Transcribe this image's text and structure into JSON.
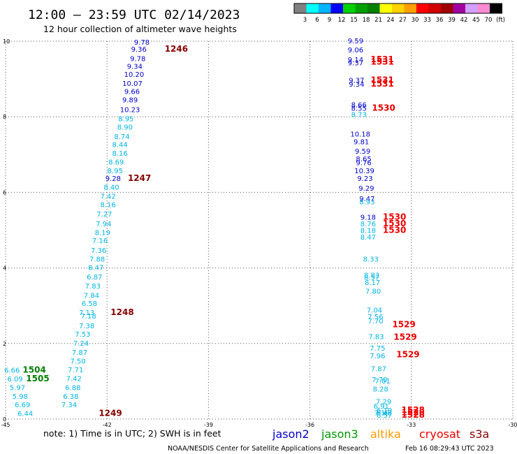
{
  "header": {
    "title": "12:00 – 23:59 UTC 02/14/2023",
    "subtitle": "12 hour collection of altimeter wave heights"
  },
  "colorbar": {
    "colors": [
      "#808080",
      "#00ffff",
      "#00b4ff",
      "#0000ff",
      "#00d200",
      "#00a000",
      "#008000",
      "#ffff00",
      "#ffd200",
      "#ffa000",
      "#ff0000",
      "#d20000",
      "#a00000",
      "#a000a0",
      "#d2a0ff",
      "#ff8cd2",
      "#000000"
    ],
    "labels": [
      "3",
      "6",
      "9",
      "12",
      "15",
      "18",
      "21",
      "24",
      "27",
      "30",
      "33",
      "36",
      "39",
      "42",
      "45",
      "70",
      "(ft)"
    ]
  },
  "footer": {
    "note": "note:  1) Time is in UTC; 2) SWH is in feet",
    "credit": "NOAA/NESDIS Center for Satellite Applications and Research",
    "timestamp": "Feb 16 08:29:43 UTC 2023",
    "satellites": [
      {
        "name": "jason2",
        "color": "#0000cc"
      },
      {
        "name": "jason3",
        "color": "#009900"
      },
      {
        "name": "altika",
        "color": "#ff9900"
      },
      {
        "name": "cryosat",
        "color": "#ee0000"
      },
      {
        "name": "s3a",
        "color": "#880000"
      }
    ]
  },
  "chart_data": {
    "type": "scatter",
    "title": "12:00 – 23:59 UTC 02/14/2023",
    "xlim": [
      -45,
      -30
    ],
    "ylim": [
      0,
      10
    ],
    "x_ticks": [
      "-45",
      "-42",
      "-39",
      "-36",
      "-33",
      "-30"
    ],
    "y_ticks": [
      "0",
      "2",
      "4",
      "6",
      "8",
      "10"
    ],
    "grid": true,
    "units": "SWH in feet",
    "colors": {
      "cyan": "#00b4e6",
      "blue": "#0000cc",
      "green": "#008000",
      "red": "#ee0000",
      "darkred": "#880000"
    },
    "observations": [
      {
        "x": -40.97,
        "y": 9.91,
        "v": "9.78",
        "c": "blue"
      },
      {
        "x": -41.06,
        "y": 9.72,
        "v": "9.36",
        "c": "blue"
      },
      {
        "x": -41.09,
        "y": 9.47,
        "v": "9.78",
        "c": "blue"
      },
      {
        "x": -41.18,
        "y": 9.27,
        "v": "9.34",
        "c": "blue"
      },
      {
        "x": -41.2,
        "y": 9.06,
        "v": "10.20",
        "c": "blue"
      },
      {
        "x": -41.25,
        "y": 8.82,
        "v": "10.07",
        "c": "blue"
      },
      {
        "x": -41.26,
        "y": 8.6,
        "v": "9.66",
        "c": "blue"
      },
      {
        "x": -41.32,
        "y": 8.38,
        "v": "9.89",
        "c": "blue"
      },
      {
        "x": -41.32,
        "y": 8.12,
        "v": "10.23",
        "c": "blue"
      },
      {
        "x": -41.44,
        "y": 7.88,
        "v": "8.95",
        "c": "cyan"
      },
      {
        "x": -41.47,
        "y": 7.66,
        "v": "8.90",
        "c": "cyan"
      },
      {
        "x": -41.56,
        "y": 7.41,
        "v": "8.74",
        "c": "cyan"
      },
      {
        "x": -41.62,
        "y": 7.2,
        "v": "8.44",
        "c": "cyan"
      },
      {
        "x": -41.62,
        "y": 6.97,
        "v": "8.16",
        "c": "cyan"
      },
      {
        "x": -41.73,
        "y": 6.74,
        "v": "8.69",
        "c": "cyan"
      },
      {
        "x": -41.76,
        "y": 6.51,
        "v": "8.95",
        "c": "cyan"
      },
      {
        "x": -41.82,
        "y": 6.3,
        "v": "9.28",
        "c": "blue"
      },
      {
        "x": -41.87,
        "y": 6.07,
        "v": "8.40",
        "c": "cyan"
      },
      {
        "x": -41.97,
        "y": 5.83,
        "v": "7.42",
        "c": "cyan"
      },
      {
        "x": -41.97,
        "y": 5.61,
        "v": "8.16",
        "c": "cyan"
      },
      {
        "x": -42.08,
        "y": 5.36,
        "v": "7.27",
        "c": "cyan"
      },
      {
        "x": -42.1,
        "y": 5.1,
        "v": "7.94",
        "c": "cyan"
      },
      {
        "x": -42.13,
        "y": 4.87,
        "v": "8.19",
        "c": "cyan"
      },
      {
        "x": -42.21,
        "y": 4.66,
        "v": "7.16",
        "c": "cyan"
      },
      {
        "x": -42.25,
        "y": 4.4,
        "v": "7.36",
        "c": "cyan"
      },
      {
        "x": -42.29,
        "y": 4.17,
        "v": "7.88",
        "c": "cyan"
      },
      {
        "x": -42.33,
        "y": 3.95,
        "v": "8.47",
        "c": "cyan"
      },
      {
        "x": -42.37,
        "y": 3.7,
        "v": "6.87",
        "c": "cyan"
      },
      {
        "x": -42.42,
        "y": 3.46,
        "v": "7.83",
        "c": "cyan"
      },
      {
        "x": -42.46,
        "y": 3.21,
        "v": "7.84",
        "c": "cyan"
      },
      {
        "x": -42.52,
        "y": 2.99,
        "v": "6.58",
        "c": "cyan"
      },
      {
        "x": -42.6,
        "y": 2.75,
        "v": "7.13",
        "c": "cyan"
      },
      {
        "x": -42.55,
        "y": 2.66,
        "v": "7.18",
        "c": "cyan"
      },
      {
        "x": -42.6,
        "y": 2.4,
        "v": "7.38",
        "c": "cyan"
      },
      {
        "x": -42.72,
        "y": 2.18,
        "v": "7.53",
        "c": "cyan"
      },
      {
        "x": -42.77,
        "y": 1.94,
        "v": "7.24",
        "c": "cyan"
      },
      {
        "x": -42.81,
        "y": 1.7,
        "v": "7.87",
        "c": "cyan"
      },
      {
        "x": -42.86,
        "y": 1.47,
        "v": "7.50",
        "c": "cyan"
      },
      {
        "x": -42.93,
        "y": 1.24,
        "v": "7.71",
        "c": "cyan"
      },
      {
        "x": -42.98,
        "y": 1.01,
        "v": "7.42",
        "c": "cyan"
      },
      {
        "x": -43.01,
        "y": 0.77,
        "v": "6.88",
        "c": "cyan"
      },
      {
        "x": -43.07,
        "y": 0.54,
        "v": "6.38",
        "c": "cyan"
      },
      {
        "x": -43.12,
        "y": 0.31,
        "v": "7.34",
        "c": "cyan"
      },
      {
        "x": -44.81,
        "y": 1.23,
        "v": "6.66",
        "c": "cyan"
      },
      {
        "x": -44.72,
        "y": 1.0,
        "v": "6.09",
        "c": "cyan"
      },
      {
        "x": -44.65,
        "y": 0.77,
        "v": "5.97",
        "c": "cyan"
      },
      {
        "x": -44.57,
        "y": 0.54,
        "v": "5.98",
        "c": "cyan"
      },
      {
        "x": -44.5,
        "y": 0.31,
        "v": "6.69",
        "c": "cyan"
      },
      {
        "x": -44.42,
        "y": 0.08,
        "v": "6.44",
        "c": "cyan"
      },
      {
        "x": -34.65,
        "y": 9.94,
        "v": "9.59",
        "c": "blue"
      },
      {
        "x": -34.65,
        "y": 9.7,
        "v": "9.06",
        "c": "blue"
      },
      {
        "x": -34.65,
        "y": 9.45,
        "v": "9.14",
        "c": "blue"
      },
      {
        "x": -34.65,
        "y": 9.36,
        "v": "9.37",
        "c": "blue"
      },
      {
        "x": -34.62,
        "y": 8.9,
        "v": "9.37",
        "c": "blue"
      },
      {
        "x": -34.62,
        "y": 8.8,
        "v": "9.34",
        "c": "blue"
      },
      {
        "x": -34.55,
        "y": 8.25,
        "v": "8.66",
        "c": "blue"
      },
      {
        "x": -34.55,
        "y": 8.16,
        "v": "8.55",
        "c": "blue"
      },
      {
        "x": -34.55,
        "y": 7.99,
        "v": "8.73",
        "c": "cyan"
      },
      {
        "x": -34.51,
        "y": 7.48,
        "v": "10.18",
        "c": "blue"
      },
      {
        "x": -34.48,
        "y": 7.27,
        "v": "9.81",
        "c": "blue"
      },
      {
        "x": -34.44,
        "y": 7.02,
        "v": "9.59",
        "c": "blue"
      },
      {
        "x": -34.41,
        "y": 6.82,
        "v": "8.65",
        "c": "blue"
      },
      {
        "x": -34.41,
        "y": 6.72,
        "v": "9.76",
        "c": "blue"
      },
      {
        "x": -34.39,
        "y": 6.51,
        "v": "10.39",
        "c": "blue"
      },
      {
        "x": -34.37,
        "y": 6.3,
        "v": "9.23",
        "c": "blue"
      },
      {
        "x": -34.33,
        "y": 6.04,
        "v": "9.29",
        "c": "blue"
      },
      {
        "x": -34.31,
        "y": 5.77,
        "v": "9.47",
        "c": "blue"
      },
      {
        "x": -34.31,
        "y": 5.68,
        "v": "8.93",
        "c": "cyan"
      },
      {
        "x": -34.28,
        "y": 5.28,
        "v": "9.18",
        "c": "blue"
      },
      {
        "x": -34.28,
        "y": 5.1,
        "v": "8.76",
        "c": "cyan"
      },
      {
        "x": -34.28,
        "y": 4.93,
        "v": "8.18",
        "c": "cyan"
      },
      {
        "x": -34.28,
        "y": 4.75,
        "v": "8.47",
        "c": "cyan"
      },
      {
        "x": -34.2,
        "y": 4.17,
        "v": "8.33",
        "c": "cyan"
      },
      {
        "x": -34.17,
        "y": 3.74,
        "v": "8.83",
        "c": "cyan"
      },
      {
        "x": -34.17,
        "y": 3.69,
        "v": "8.57",
        "c": "cyan"
      },
      {
        "x": -34.15,
        "y": 3.55,
        "v": "8.17",
        "c": "cyan"
      },
      {
        "x": -34.13,
        "y": 3.32,
        "v": "7.80",
        "c": "cyan"
      },
      {
        "x": -34.09,
        "y": 2.82,
        "v": "7.04",
        "c": "cyan"
      },
      {
        "x": -34.06,
        "y": 2.64,
        "v": "7.56",
        "c": "cyan"
      },
      {
        "x": -34.06,
        "y": 2.53,
        "v": "7.70",
        "c": "cyan"
      },
      {
        "x": -34.04,
        "y": 2.12,
        "v": "7.83",
        "c": "cyan"
      },
      {
        "x": -34.0,
        "y": 1.81,
        "v": "7.75",
        "c": "cyan"
      },
      {
        "x": -34.0,
        "y": 1.61,
        "v": "7.96",
        "c": "cyan"
      },
      {
        "x": -33.97,
        "y": 1.27,
        "v": "7.87",
        "c": "cyan"
      },
      {
        "x": -33.94,
        "y": 0.98,
        "v": "7.70",
        "c": "cyan"
      },
      {
        "x": -33.91,
        "y": 0.73,
        "v": "8.28",
        "c": "cyan"
      },
      {
        "x": -33.89,
        "y": 0.28,
        "v": "6.91",
        "c": "cyan"
      },
      {
        "x": -33.87,
        "y": 0.1,
        "v": "7.19",
        "c": "cyan"
      },
      {
        "x": -33.85,
        "y": 0.94,
        "v": "7.01",
        "c": "cyan"
      },
      {
        "x": -33.82,
        "y": 0.4,
        "v": "7.29",
        "c": "cyan"
      },
      {
        "x": -33.8,
        "y": 0.17,
        "v": "6.19",
        "c": "cyan"
      },
      {
        "x": -33.8,
        "y": 0.1,
        "v": "6.43",
        "c": "cyan"
      },
      {
        "x": -33.8,
        "y": 0.04,
        "v": "6.57",
        "c": "cyan"
      }
    ],
    "passes": [
      {
        "x": -39.95,
        "y": 9.72,
        "v": "1246",
        "c": "darkred"
      },
      {
        "x": -41.04,
        "y": 6.3,
        "v": "1247",
        "c": "darkred"
      },
      {
        "x": -41.55,
        "y": 2.75,
        "v": "1248",
        "c": "darkred"
      },
      {
        "x": -41.9,
        "y": 0.08,
        "v": "1249",
        "c": "darkred"
      },
      {
        "x": -44.15,
        "y": 1.23,
        "v": "1504",
        "c": "green"
      },
      {
        "x": -44.05,
        "y": 1.0,
        "v": "1505",
        "c": "green"
      },
      {
        "x": -33.86,
        "y": 9.45,
        "v": "1531",
        "c": "red"
      },
      {
        "x": -33.86,
        "y": 9.38,
        "v": "1531",
        "c": "red"
      },
      {
        "x": -33.86,
        "y": 8.9,
        "v": "1531",
        "c": "red"
      },
      {
        "x": -33.86,
        "y": 8.8,
        "v": "1531",
        "c": "red"
      },
      {
        "x": -33.82,
        "y": 8.16,
        "v": "1530",
        "c": "red"
      },
      {
        "x": -33.5,
        "y": 5.28,
        "v": "1530",
        "c": "red"
      },
      {
        "x": -33.5,
        "y": 5.1,
        "v": "1530",
        "c": "red"
      },
      {
        "x": -33.5,
        "y": 4.93,
        "v": "1530",
        "c": "red"
      },
      {
        "x": -33.22,
        "y": 2.43,
        "v": "1529",
        "c": "red"
      },
      {
        "x": -33.18,
        "y": 2.1,
        "v": "1529",
        "c": "red"
      },
      {
        "x": -33.1,
        "y": 1.64,
        "v": "1529",
        "c": "red"
      },
      {
        "x": -32.95,
        "y": 0.17,
        "v": "1528",
        "c": "red"
      },
      {
        "x": -32.95,
        "y": 0.1,
        "v": "1528",
        "c": "red"
      },
      {
        "x": -32.95,
        "y": 0.04,
        "v": "1528",
        "c": "red"
      }
    ]
  }
}
